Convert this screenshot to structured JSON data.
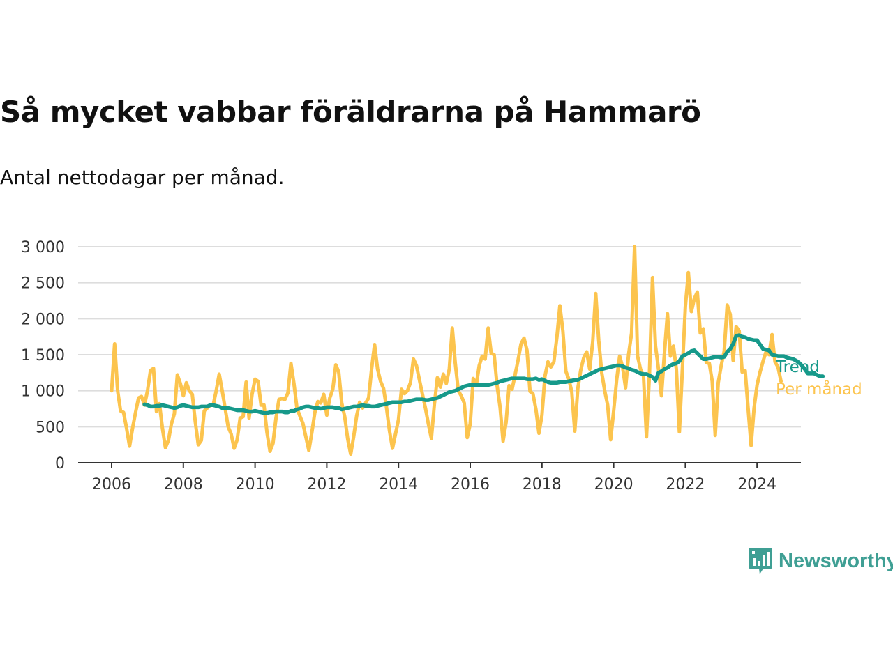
{
  "colors": {
    "trend": "#16998a",
    "monthly": "#fcc44e",
    "grid": "#dddddd",
    "axis": "#333333",
    "brand": "#3f9f94"
  },
  "logo": {
    "text": "Newsworthy",
    "icon": "newsworthy-logo-icon"
  },
  "chart_data": {
    "type": "line",
    "title": "Så mycket vabbar föräldrarna på Hammarö",
    "subtitle": "Antal nettodagar per månad.",
    "xlabel": "",
    "ylabel": "",
    "ylim": [
      0,
      3000
    ],
    "xlim": [
      "2006-01",
      "2024-12"
    ],
    "grid": true,
    "y_ticks": [
      0,
      500,
      1000,
      1500,
      2000,
      2500,
      3000
    ],
    "y_tick_labels": [
      "0",
      "500",
      "1 000",
      "1 500",
      "2 000",
      "2 500",
      "3 000"
    ],
    "x_ticks": [
      2006,
      2008,
      2010,
      2012,
      2014,
      2016,
      2018,
      2020,
      2022,
      2024
    ],
    "x_tick_labels": [
      "2006",
      "2008",
      "2010",
      "2012",
      "2014",
      "2016",
      "2018",
      "2020",
      "2022",
      "2024"
    ],
    "series": [
      {
        "name": "Per månad",
        "start": "2006-01",
        "values": [
          1000,
          1650,
          1000,
          720,
          700,
          480,
          230,
          480,
          700,
          900,
          920,
          800,
          1000,
          1280,
          1310,
          710,
          820,
          480,
          210,
          310,
          540,
          680,
          1220,
          1100,
          930,
          1110,
          1000,
          950,
          570,
          250,
          310,
          720,
          760,
          800,
          800,
          1000,
          1230,
          1000,
          750,
          500,
          400,
          200,
          320,
          620,
          640,
          1120,
          620,
          950,
          1160,
          1130,
          800,
          800,
          420,
          160,
          270,
          620,
          880,
          890,
          880,
          970,
          1380,
          1100,
          760,
          650,
          550,
          360,
          170,
          420,
          700,
          850,
          830,
          950,
          660,
          900,
          1020,
          1360,
          1260,
          830,
          640,
          330,
          120,
          360,
          650,
          840,
          760,
          830,
          900,
          1300,
          1640,
          1300,
          1130,
          1030,
          760,
          440,
          200,
          400,
          600,
          1020,
          960,
          1000,
          1110,
          1440,
          1350,
          1150,
          950,
          760,
          540,
          340,
          810,
          1180,
          1050,
          1230,
          1100,
          1300,
          1870,
          1380,
          1000,
          930,
          830,
          350,
          540,
          1170,
          1070,
          1350,
          1480,
          1440,
          1870,
          1520,
          1500,
          1070,
          770,
          300,
          560,
          1070,
          1020,
          1220,
          1420,
          1650,
          1730,
          1560,
          990,
          960,
          740,
          410,
          660,
          1200,
          1400,
          1330,
          1400,
          1740,
          2180,
          1830,
          1270,
          1160,
          980,
          440,
          1030,
          1290,
          1460,
          1540,
          1300,
          1680,
          2350,
          1700,
          1250,
          1000,
          800,
          320,
          720,
          1150,
          1480,
          1330,
          1040,
          1500,
          1800,
          3000,
          1480,
          1300,
          1200,
          360,
          1260,
          2570,
          1620,
          1300,
          930,
          1520,
          2070,
          1480,
          1620,
          1300,
          430,
          1300,
          2170,
          2640,
          2100,
          2280,
          2370,
          1800,
          1860,
          1390,
          1380,
          1130,
          380,
          1110,
          1350,
          1550,
          2190,
          2060,
          1420,
          1890,
          1830,
          1260,
          1280,
          760,
          240,
          760,
          1080,
          1260,
          1410,
          1540,
          1500,
          1780,
          1400,
          1330,
          1130
        ]
      },
      {
        "name": "Trend",
        "start": "2006-12",
        "values": [
          810,
          800,
          780,
          780,
          790,
          790,
          800,
          790,
          780,
          770,
          760,
          770,
          790,
          800,
          790,
          780,
          770,
          770,
          770,
          780,
          780,
          780,
          800,
          800,
          790,
          780,
          760,
          760,
          760,
          750,
          740,
          730,
          730,
          730,
          720,
          710,
          710,
          720,
          710,
          700,
          690,
          690,
          700,
          700,
          710,
          710,
          710,
          700,
          700,
          720,
          720,
          740,
          750,
          770,
          780,
          780,
          770,
          760,
          760,
          750,
          760,
          770,
          770,
          770,
          760,
          760,
          740,
          750,
          760,
          770,
          780,
          780,
          790,
          800,
          790,
          790,
          780,
          780,
          790,
          800,
          810,
          820,
          830,
          840,
          840,
          840,
          840,
          850,
          850,
          860,
          870,
          880,
          880,
          880,
          870,
          870,
          880,
          890,
          900,
          920,
          940,
          960,
          980,
          990,
          1000,
          1020,
          1040,
          1060,
          1070,
          1080,
          1080,
          1080,
          1080,
          1080,
          1080,
          1080,
          1090,
          1100,
          1110,
          1130,
          1140,
          1150,
          1160,
          1170,
          1170,
          1170,
          1170,
          1170,
          1160,
          1160,
          1160,
          1170,
          1150,
          1160,
          1140,
          1120,
          1110,
          1110,
          1110,
          1120,
          1120,
          1120,
          1130,
          1140,
          1150,
          1150,
          1170,
          1190,
          1210,
          1230,
          1250,
          1270,
          1290,
          1300,
          1310,
          1320,
          1330,
          1340,
          1350,
          1350,
          1340,
          1320,
          1310,
          1290,
          1280,
          1260,
          1240,
          1230,
          1230,
          1210,
          1190,
          1140,
          1250,
          1270,
          1300,
          1320,
          1350,
          1370,
          1380,
          1410,
          1480,
          1500,
          1520,
          1550,
          1560,
          1520,
          1480,
          1440,
          1440,
          1450,
          1460,
          1470,
          1470,
          1460,
          1470,
          1540,
          1580,
          1650,
          1760,
          1770,
          1750,
          1740,
          1720,
          1710,
          1700,
          1700,
          1640,
          1580,
          1570,
          1560,
          1500,
          1490,
          1480,
          1480,
          1480,
          1460,
          1450,
          1440,
          1420,
          1390,
          1350,
          1300,
          1240,
          1240,
          1240,
          1220,
          1200,
          1200
        ]
      }
    ]
  }
}
